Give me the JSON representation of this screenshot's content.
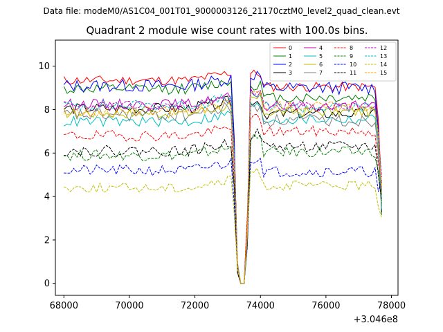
{
  "chart_data": {
    "type": "line",
    "suptitle": "Data file: modeM0/AS1C04_001T01_9000003126_21170cztM0_level2_quad_clean.evt",
    "title": "Quadrant 2 module wise count rates with 100.0s bins.",
    "xlabel": "",
    "ylabel": "",
    "x_offset_label": "+3.046e8",
    "xlim": [
      67740,
      78200
    ],
    "ylim": [
      -0.55,
      11.2
    ],
    "x_ticks": [
      68000,
      70000,
      72000,
      74000,
      76000,
      78000
    ],
    "x_tick_labels": [
      "68000",
      "70000",
      "72000",
      "74000",
      "76000",
      "78000"
    ],
    "y_ticks": [
      0,
      2,
      4,
      6,
      8,
      10
    ],
    "y_tick_labels": [
      "0",
      "2",
      "4",
      "6",
      "8",
      "10"
    ],
    "x": {
      "start": 68000,
      "step": 100,
      "count": 98,
      "gap_start": 73200,
      "gap_end": 73700
    },
    "legend_position": "top-right",
    "series": [
      {
        "name": "0",
        "color": "#ff0000",
        "dash": "solid",
        "level_pre": 9.35,
        "level_post": 9.05,
        "noise": 0.22,
        "seed": 11
      },
      {
        "name": "1",
        "color": "#008000",
        "dash": "solid",
        "level_pre": 8.95,
        "level_post": 8.55,
        "noise": 0.25,
        "seed": 12
      },
      {
        "name": "2",
        "color": "#0000ff",
        "dash": "solid",
        "level_pre": 9.1,
        "level_post": 9.0,
        "noise": 0.3,
        "seed": 13
      },
      {
        "name": "3",
        "color": "#000000",
        "dash": "solid",
        "level_pre": 8.05,
        "level_post": 7.8,
        "noise": 0.25,
        "seed": 14
      },
      {
        "name": "4",
        "color": "#bf00bf",
        "dash": "solid",
        "level_pre": 8.25,
        "level_post": 8.15,
        "noise": 0.25,
        "seed": 15
      },
      {
        "name": "5",
        "color": "#00bfbf",
        "dash": "solid",
        "level_pre": 7.45,
        "level_post": 7.55,
        "noise": 0.25,
        "seed": 16
      },
      {
        "name": "6",
        "color": "#bfbf00",
        "dash": "solid",
        "level_pre": 7.85,
        "level_post": 7.9,
        "noise": 0.25,
        "seed": 17
      },
      {
        "name": "7",
        "color": "#808080",
        "dash": "solid",
        "level_pre": 7.75,
        "level_post": 7.5,
        "noise": 0.3,
        "seed": 18
      },
      {
        "name": "8",
        "color": "#ff0000",
        "dash": "dashed",
        "level_pre": 6.8,
        "level_post": 7.0,
        "noise": 0.25,
        "seed": 19
      },
      {
        "name": "9",
        "color": "#008000",
        "dash": "dashed",
        "level_pre": 5.9,
        "level_post": 6.05,
        "noise": 0.25,
        "seed": 20
      },
      {
        "name": "10",
        "color": "#0000ff",
        "dash": "dashed",
        "level_pre": 5.2,
        "level_post": 5.15,
        "noise": 0.25,
        "seed": 21
      },
      {
        "name": "11",
        "color": "#000000",
        "dash": "dashed",
        "level_pre": 6.1,
        "level_post": 6.3,
        "noise": 0.25,
        "seed": 22
      },
      {
        "name": "12",
        "color": "#bf00bf",
        "dash": "dashed",
        "level_pre": 8.15,
        "level_post": 8.15,
        "noise": 0.25,
        "seed": 23
      },
      {
        "name": "13",
        "color": "#00bfbf",
        "dash": "dashed",
        "level_pre": 8.2,
        "level_post": 8.1,
        "noise": 0.25,
        "seed": 24
      },
      {
        "name": "14",
        "color": "#bfbf00",
        "dash": "dashed",
        "level_pre": 4.4,
        "level_post": 4.5,
        "noise": 0.22,
        "seed": 25
      },
      {
        "name": "15",
        "color": "#ffa500",
        "dash": "dashed",
        "level_pre": 7.9,
        "level_post": 8.15,
        "noise": 0.25,
        "seed": 26
      }
    ]
  }
}
